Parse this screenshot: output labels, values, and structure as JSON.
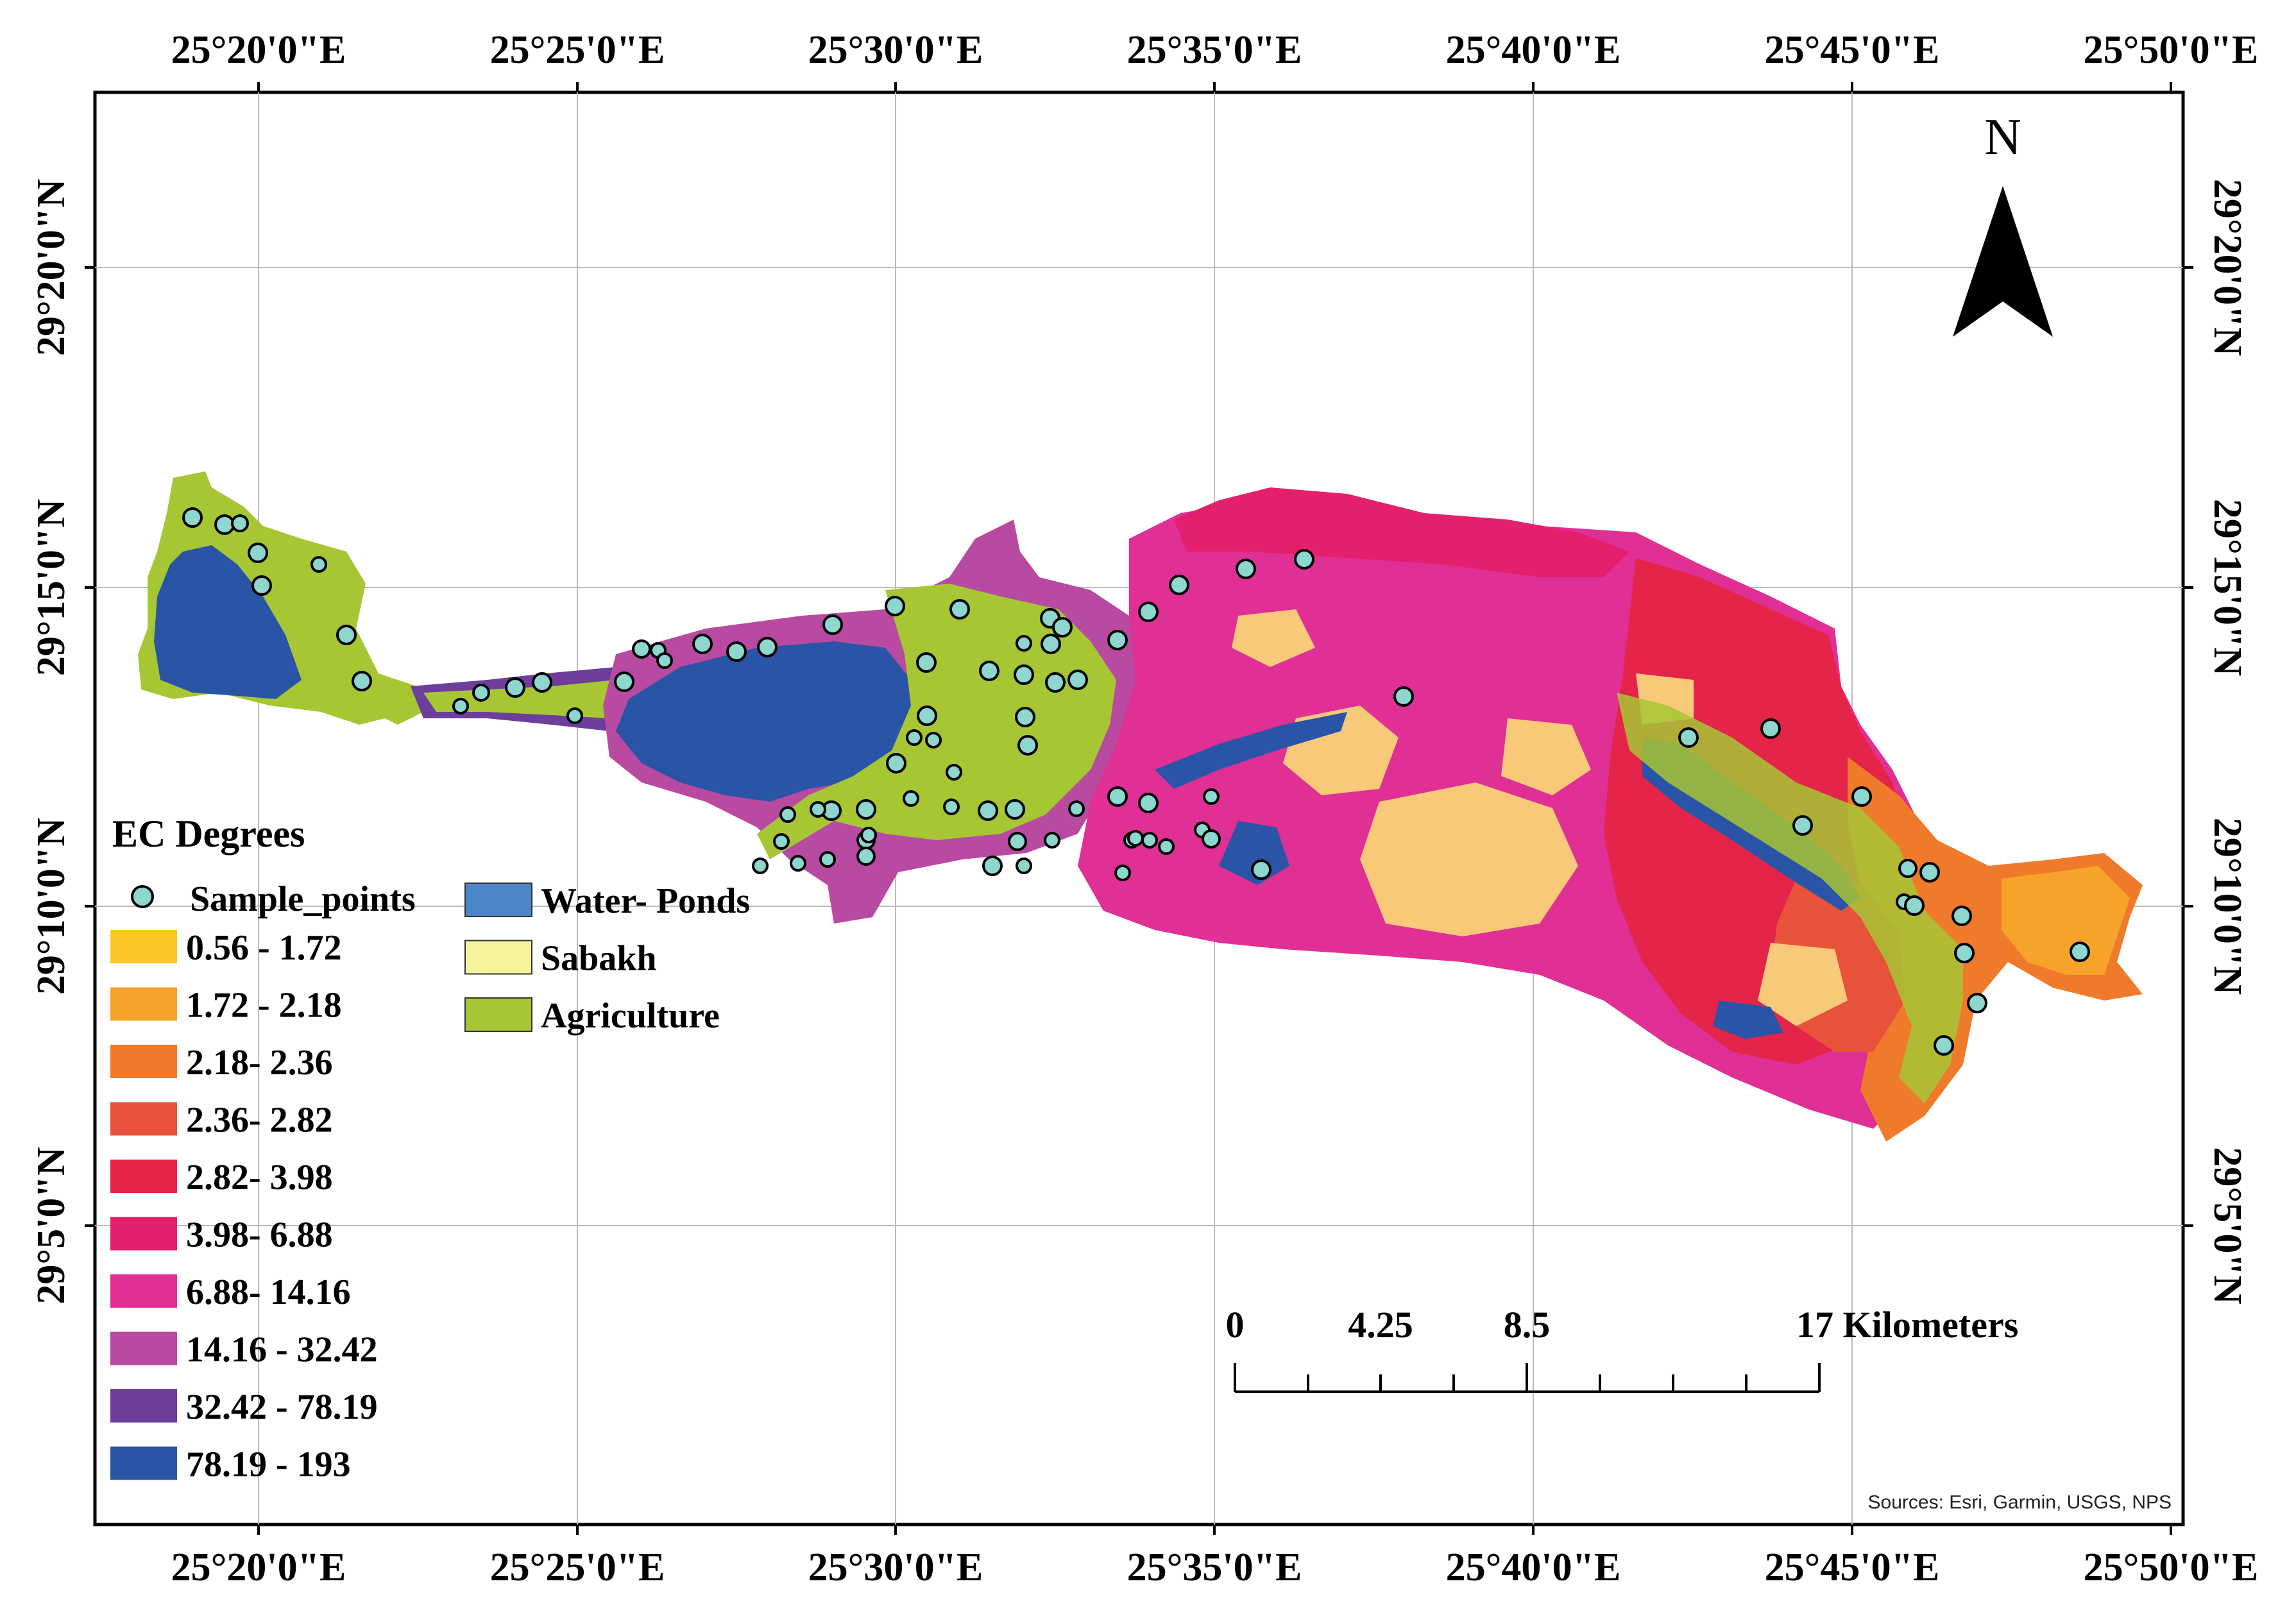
{
  "map": {
    "legend": {
      "title": "EC Degrees",
      "sample_points_label": "Sample_points",
      "classes": [
        {
          "label": "0.56 - 1.72",
          "color": "#FCC726"
        },
        {
          "label": "1.72 - 2.18",
          "color": "#F6A32A"
        },
        {
          "label": "2.18- 2.36",
          "color": "#F07A2B"
        },
        {
          "label": "2.36- 2.82",
          "color": "#E8523A"
        },
        {
          "label": "2.82- 3.98",
          "color": "#E52449"
        },
        {
          "label": "3.98- 6.88",
          "color": "#E4206E"
        },
        {
          "label": "6.88- 14.16",
          "color": "#E02F95"
        },
        {
          "label": "14.16 - 32.42",
          "color": "#B94AA1"
        },
        {
          "label": "32.42 - 78.19",
          "color": "#6D3E9B"
        },
        {
          "label": "78.19 - 193",
          "color": "#2A55A6"
        }
      ],
      "overlays": [
        {
          "label": "Water- Ponds",
          "color": "#4A86C8"
        },
        {
          "label": "Sabakh",
          "color": "#F6F39C"
        },
        {
          "label": "Agriculture",
          "color": "#A6C634"
        }
      ]
    },
    "longitude_labels": [
      "25°20'0\"E",
      "25°25'0\"E",
      "25°30'0\"E",
      "25°35'0\"E",
      "25°40'0\"E",
      "25°45'0\"E",
      "25°50'0\"E"
    ],
    "latitude_labels": [
      "29°20'0\"N",
      "29°15'0\"N",
      "29°10'0\"N",
      "29°5'0\"N"
    ],
    "north_arrow_label": "N",
    "scale_bar": {
      "labels": [
        "0",
        "4.25",
        "8.5",
        "17 Kilometers"
      ]
    },
    "attribution": "Sources: Esri, Garmin, USGS, NPS",
    "sample_point_color": "#8ED7CF"
  }
}
